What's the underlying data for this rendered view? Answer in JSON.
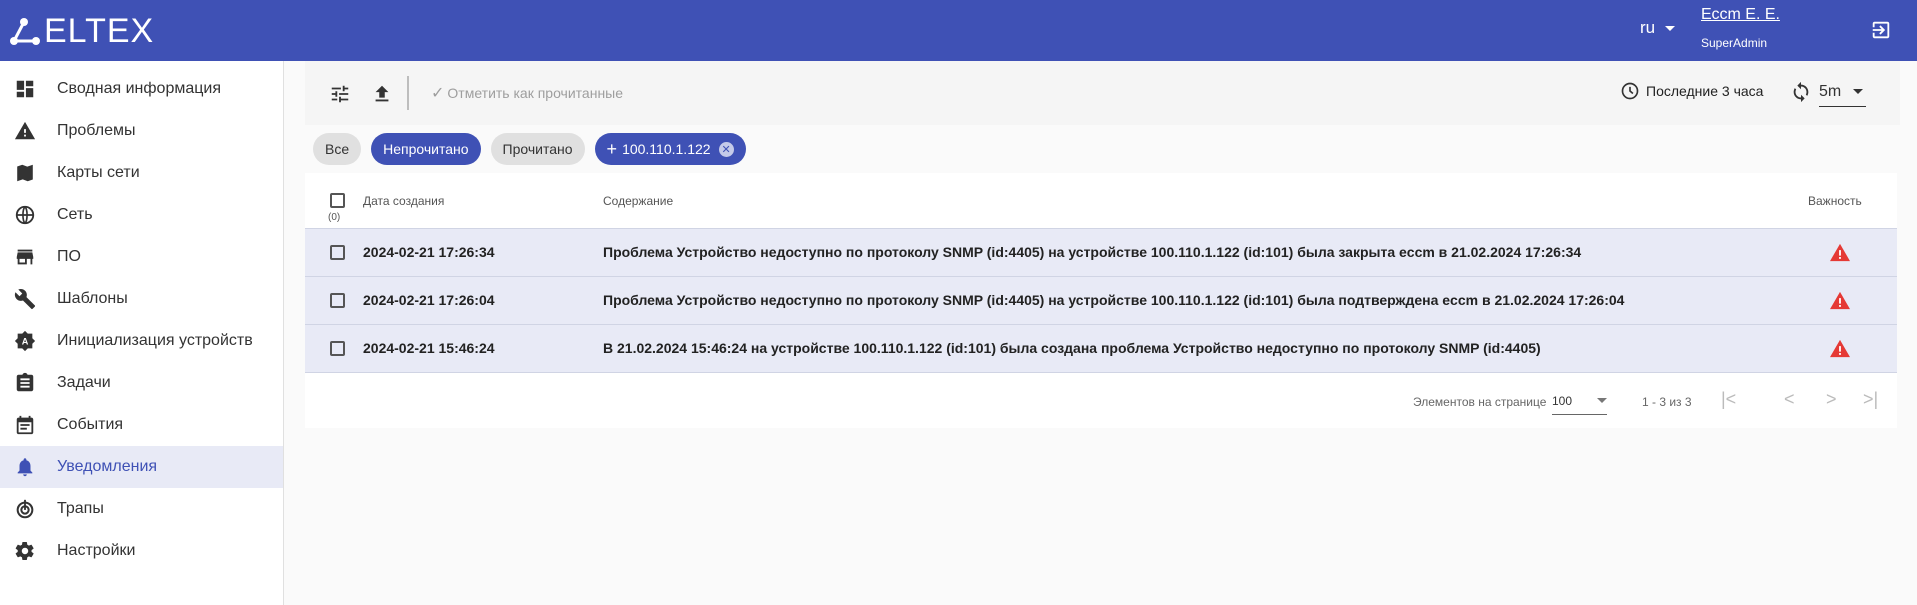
{
  "header": {
    "logo": "ELTEX",
    "lang": "ru",
    "user_name": "Ессm Е. Е.",
    "user_role": "SuperAdmin"
  },
  "sidebar": {
    "items": [
      {
        "label": "Сводная информация",
        "icon": "dashboard-icon"
      },
      {
        "label": "Проблемы",
        "icon": "warning-icon"
      },
      {
        "label": "Карты сети",
        "icon": "map-icon"
      },
      {
        "label": "Сеть",
        "icon": "globe-icon"
      },
      {
        "label": "ПО",
        "icon": "store-icon"
      },
      {
        "label": "Шаблоны",
        "icon": "wrench-icon"
      },
      {
        "label": "Инициализация устройств",
        "icon": "auto-badge-icon"
      },
      {
        "label": "Задачи",
        "icon": "clipboard-icon"
      },
      {
        "label": "События",
        "icon": "calendar-icon"
      },
      {
        "label": "Уведомления",
        "icon": "bell-icon",
        "active": true
      },
      {
        "label": "Трапы",
        "icon": "trap-icon"
      },
      {
        "label": "Настройки",
        "icon": "gear-icon"
      }
    ]
  },
  "toolbar": {
    "mark_read": "Отметить как прочитанные",
    "period": "Последние 3 часа",
    "interval": "5m"
  },
  "filters": {
    "all": "Все",
    "unread": "Непрочитано",
    "read": "Прочитано",
    "device": "100.110.1.122"
  },
  "table": {
    "headers": {
      "date": "Дата создания",
      "content": "Содержание",
      "severity": "Важность",
      "selected": "(0)"
    },
    "rows": [
      {
        "date": "2024-02-21 17:26:34",
        "content": "Проблема Устройство недоступно по протоколу SNMP (id:4405) на устройстве 100.110.1.122 (id:101) была закрыта eccm в 21.02.2024 17:26:34",
        "severity": "warning"
      },
      {
        "date": "2024-02-21 17:26:04",
        "content": "Проблема Устройство недоступно по протоколу SNMP (id:4405) на устройстве 100.110.1.122 (id:101) была подтверждена eccm в 21.02.2024 17:26:04",
        "severity": "warning"
      },
      {
        "date": "2024-02-21 15:46:24",
        "content": "В 21.02.2024 15:46:24 на устройстве 100.110.1.122 (id:101) была создана проблема Устройство недоступно по протоколу SNMP (id:4405)",
        "severity": "warning"
      }
    ]
  },
  "pagination": {
    "per_page_label": "Элементов на странице",
    "per_page": "100",
    "range": "1 - 3 из 3"
  },
  "colors": {
    "primary": "#3f51b5",
    "warning": "#e53935",
    "row_unread": "#e8eaf6"
  }
}
